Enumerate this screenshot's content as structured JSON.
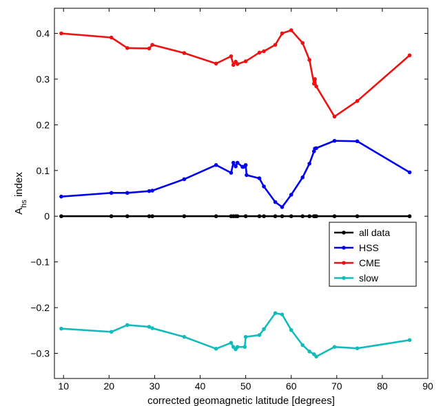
{
  "chart_data": {
    "type": "line",
    "title": "",
    "xlabel": "corrected geomagnetic latitude [degrees]",
    "ylabel_main": "A",
    "ylabel_sub": "hs",
    "ylabel_suffix": " index",
    "xlim": [
      8,
      90
    ],
    "ylim": [
      -0.355,
      0.455
    ],
    "xticks": [
      10,
      20,
      30,
      40,
      50,
      60,
      70,
      80,
      90
    ],
    "yticks": [
      -0.3,
      -0.2,
      -0.1,
      0,
      0.1,
      0.2,
      0.3,
      0.4
    ],
    "xtick_labels": [
      "10",
      "20",
      "30",
      "40",
      "50",
      "60",
      "70",
      "80",
      "90"
    ],
    "ytick_labels": [
      "−0.3",
      "−0.2",
      "−0.1",
      "0",
      "0.1",
      "0.2",
      "0.3",
      "0.4"
    ],
    "grid": false,
    "legend_position": "center-right",
    "series": [
      {
        "name": "all data",
        "color": "#000000",
        "points": [
          [
            9.5,
            0
          ],
          [
            20.5,
            0
          ],
          [
            24,
            0
          ],
          [
            28.8,
            0
          ],
          [
            29.5,
            0
          ],
          [
            36.5,
            0
          ],
          [
            43.5,
            0
          ],
          [
            46.8,
            0
          ],
          [
            47.3,
            0
          ],
          [
            47.8,
            0
          ],
          [
            48.2,
            0
          ],
          [
            50,
            0
          ],
          [
            53,
            0
          ],
          [
            54,
            0
          ],
          [
            56.5,
            0
          ],
          [
            58,
            0
          ],
          [
            60,
            0
          ],
          [
            62.5,
            0
          ],
          [
            64,
            0
          ],
          [
            65,
            0
          ],
          [
            65.3,
            0
          ],
          [
            65.5,
            0
          ],
          [
            69.5,
            0
          ],
          [
            74.5,
            0
          ],
          [
            86,
            0
          ]
        ]
      },
      {
        "name": "HSS",
        "color": "#0000ee",
        "points": [
          [
            9.5,
            0.043
          ],
          [
            20.5,
            0.051
          ],
          [
            24,
            0.051
          ],
          [
            28.8,
            0.055
          ],
          [
            29.5,
            0.056
          ],
          [
            36.5,
            0.081
          ],
          [
            43.5,
            0.112
          ],
          [
            46.8,
            0.095
          ],
          [
            47.3,
            0.117
          ],
          [
            47.8,
            0.109
          ],
          [
            48.2,
            0.117
          ],
          [
            49.3,
            0.108
          ],
          [
            49.5,
            0.108
          ],
          [
            50,
            0.112
          ],
          [
            50.2,
            0.09
          ],
          [
            53,
            0.083
          ],
          [
            54,
            0.065
          ],
          [
            56.5,
            0.031
          ],
          [
            58,
            0.02
          ],
          [
            60,
            0.047
          ],
          [
            62.5,
            0.085
          ],
          [
            64,
            0.115
          ],
          [
            65,
            0.142
          ],
          [
            65.2,
            0.148
          ],
          [
            65.5,
            0.149
          ],
          [
            69.5,
            0.165
          ],
          [
            74.5,
            0.164
          ],
          [
            86,
            0.096
          ]
        ]
      },
      {
        "name": "CME",
        "color": "#ee1111",
        "points": [
          [
            9.5,
            0.4
          ],
          [
            20.5,
            0.391
          ],
          [
            24,
            0.368
          ],
          [
            28.8,
            0.367
          ],
          [
            29.5,
            0.375
          ],
          [
            36.5,
            0.357
          ],
          [
            43.5,
            0.334
          ],
          [
            46.8,
            0.35
          ],
          [
            47.3,
            0.331
          ],
          [
            47.8,
            0.338
          ],
          [
            48.2,
            0.333
          ],
          [
            50,
            0.339
          ],
          [
            53,
            0.358
          ],
          [
            54,
            0.361
          ],
          [
            56.5,
            0.375
          ],
          [
            58,
            0.4
          ],
          [
            60,
            0.407
          ],
          [
            62.5,
            0.379
          ],
          [
            64,
            0.342
          ],
          [
            65,
            0.29
          ],
          [
            65.2,
            0.3
          ],
          [
            65.5,
            0.284
          ],
          [
            69.5,
            0.218
          ],
          [
            74.5,
            0.252
          ],
          [
            86,
            0.352
          ]
        ]
      },
      {
        "name": "slow",
        "color": "#11bbbb",
        "points": [
          [
            9.5,
            -0.246
          ],
          [
            20.5,
            -0.253
          ],
          [
            24,
            -0.238
          ],
          [
            28.8,
            -0.242
          ],
          [
            29.5,
            -0.245
          ],
          [
            36.5,
            -0.264
          ],
          [
            43.5,
            -0.29
          ],
          [
            46.8,
            -0.277
          ],
          [
            47.3,
            -0.286
          ],
          [
            47.8,
            -0.291
          ],
          [
            48.2,
            -0.286
          ],
          [
            49.8,
            -0.286
          ],
          [
            50,
            -0.264
          ],
          [
            53,
            -0.26
          ],
          [
            54,
            -0.247
          ],
          [
            56.5,
            -0.212
          ],
          [
            58,
            -0.215
          ],
          [
            60,
            -0.249
          ],
          [
            62.5,
            -0.282
          ],
          [
            64,
            -0.296
          ],
          [
            65,
            -0.302
          ],
          [
            65.5,
            -0.307
          ],
          [
            69.5,
            -0.286
          ],
          [
            74.5,
            -0.289
          ],
          [
            86,
            -0.271
          ]
        ]
      }
    ]
  }
}
